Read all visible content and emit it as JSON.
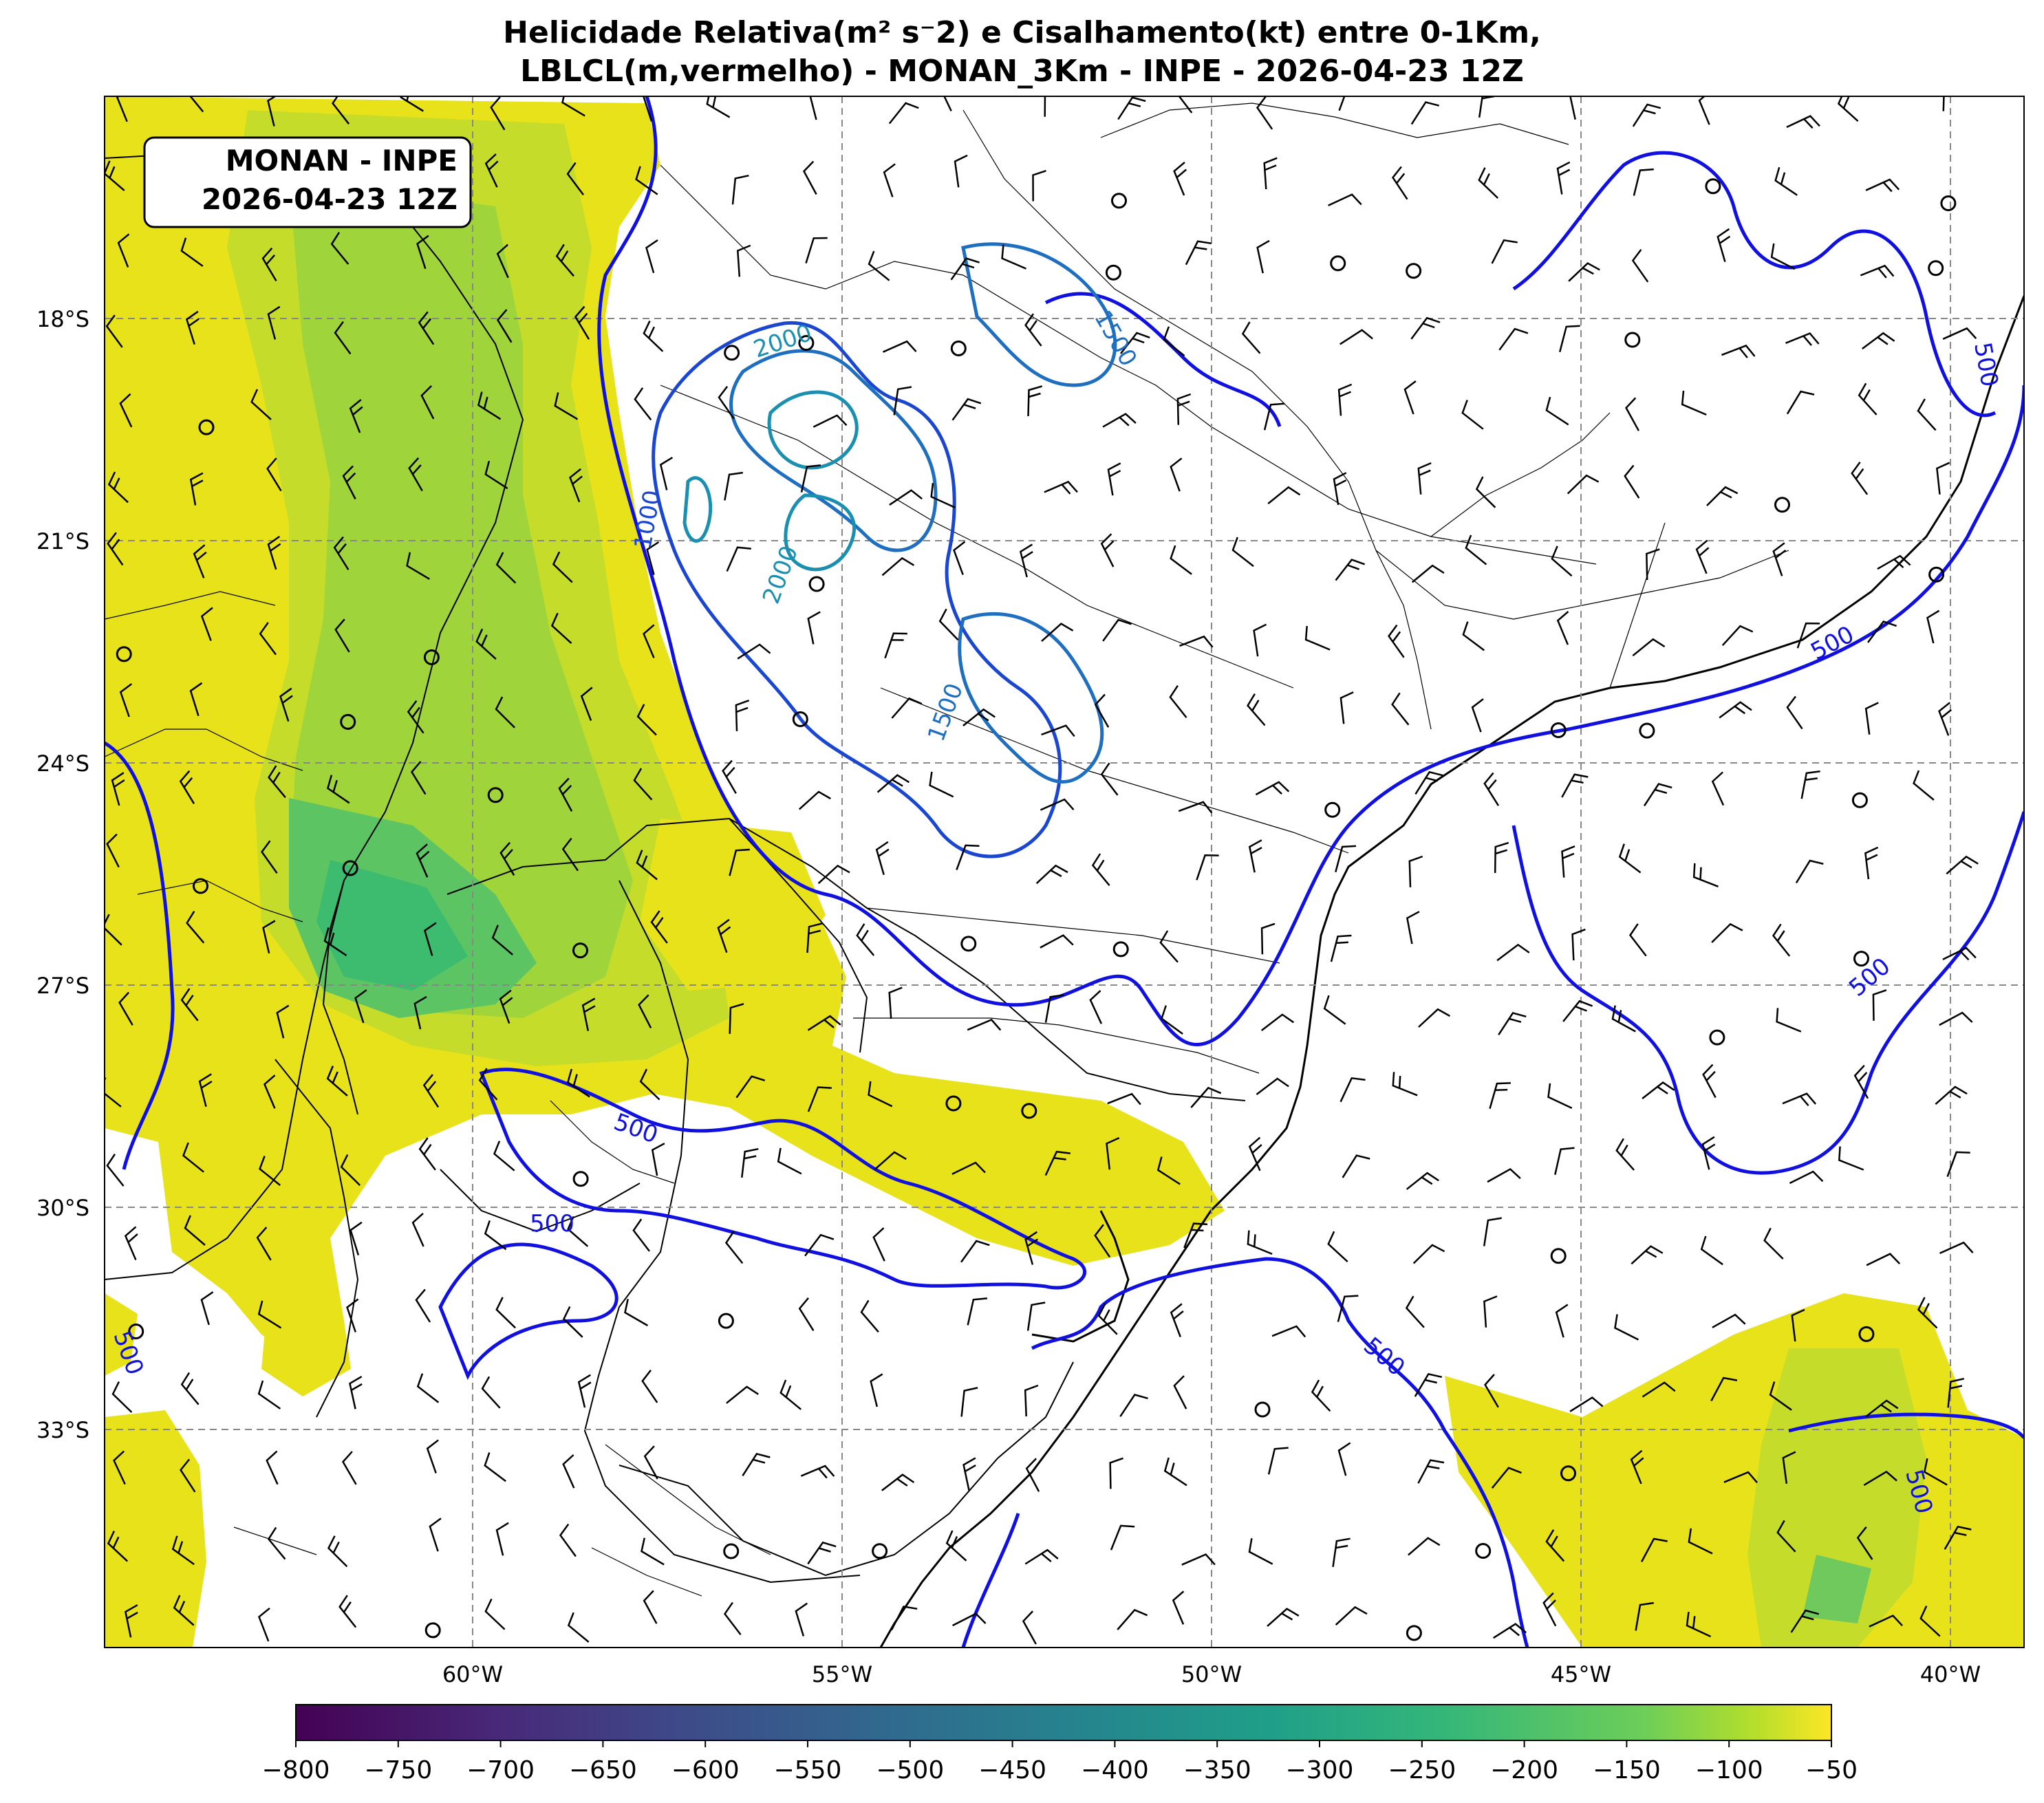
{
  "title": {
    "line1": "Helicidade Relativa(m² s⁻2) e Cisalhamento(kt) entre 0-1Km,",
    "line2": "LBLCL(m,vermelho) - MONAN_3Km - INPE - 2026-04-23 12Z"
  },
  "badge": {
    "line1": "MONAN - INPE",
    "line2": "2026-04-23 12Z"
  },
  "axes": {
    "lat_labels": [
      "18°S",
      "21°S",
      "24°S",
      "27°S",
      "30°S",
      "33°S"
    ],
    "lon_labels": [
      "60°W",
      "55°W",
      "50°W",
      "45°W",
      "40°W"
    ]
  },
  "contour_labels": [
    "2000",
    "2000",
    "1500",
    "1500",
    "1000",
    "500",
    "500",
    "500",
    "500",
    "500",
    "500",
    "500",
    "500"
  ],
  "colorbar": {
    "ticks": [
      "−800",
      "−750",
      "−700",
      "−650",
      "−600",
      "−550",
      "−500",
      "−450",
      "−400",
      "−350",
      "−300",
      "−250",
      "−200",
      "−150",
      "−100",
      "−50"
    ],
    "colormap": "viridis"
  },
  "colors": {
    "contour_500": "#1010e0",
    "contour_1000": "#1a46d0",
    "contour_1500": "#1f6fc0",
    "contour_2000": "#1b8fb0",
    "helicity_weak": "#e8e21a",
    "helicity_mid": "#9fd43a",
    "helicity_strong": "#3dbb6e"
  }
}
